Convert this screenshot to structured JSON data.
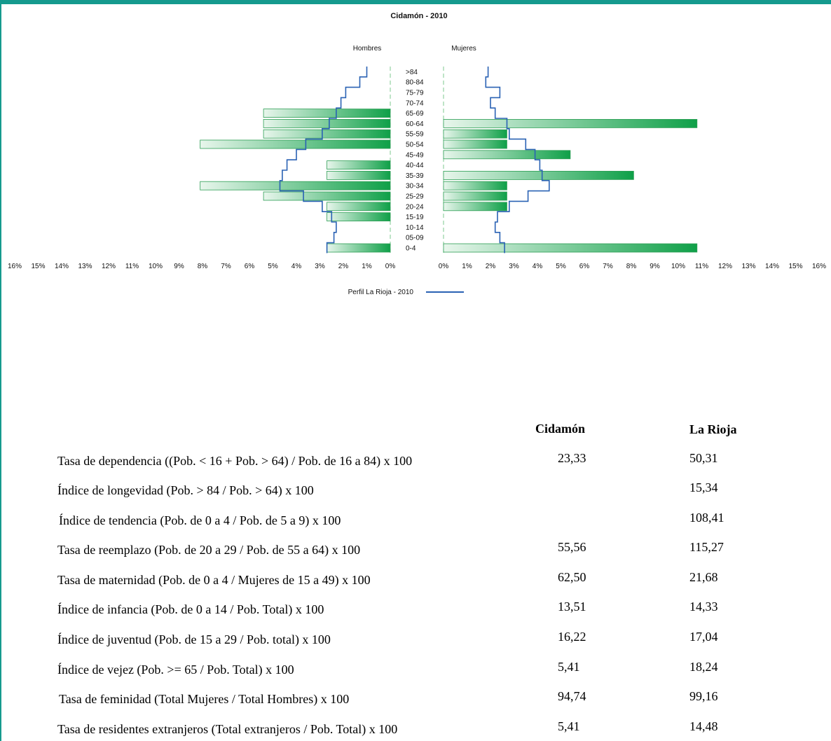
{
  "chart_data": {
    "type": "bar",
    "title": "Cidamón - 2010",
    "left_label": "Hombres",
    "right_label": "Mujeres",
    "categories": [
      ">84",
      "80-84",
      "75-79",
      "70-74",
      "65-69",
      "60-64",
      "55-59",
      "50-54",
      "45-49",
      "40-44",
      "35-39",
      "30-34",
      "25-29",
      "20-24",
      "15-19",
      "10-14",
      "05-09",
      "0-4"
    ],
    "series": [
      {
        "name": "Hombres",
        "values": [
          0,
          0,
          0,
          0,
          5.4,
          5.4,
          5.4,
          8.1,
          0,
          2.7,
          2.7,
          8.1,
          5.4,
          2.7,
          2.7,
          0,
          0,
          2.7
        ]
      },
      {
        "name": "Mujeres",
        "values": [
          0,
          0,
          0,
          0,
          0,
          10.8,
          2.7,
          2.7,
          5.4,
          0,
          8.1,
          2.7,
          2.7,
          2.7,
          0,
          0,
          0,
          10.8
        ]
      }
    ],
    "profile": {
      "name": "Perfil La Rioja - 2010",
      "hombres": [
        1.0,
        1.3,
        1.9,
        2.1,
        2.3,
        2.6,
        2.9,
        3.6,
        4.0,
        4.4,
        4.6,
        4.7,
        3.7,
        2.9,
        2.5,
        2.3,
        2.4,
        2.7
      ],
      "mujeres": [
        1.9,
        1.8,
        2.4,
        2.0,
        2.2,
        2.7,
        2.8,
        3.5,
        3.9,
        4.1,
        4.2,
        4.5,
        3.6,
        2.8,
        2.3,
        2.2,
        2.4,
        2.6
      ]
    },
    "xlim": [
      0,
      16
    ],
    "xtick_labels": [
      "0%",
      "1%",
      "2%",
      "3%",
      "4%",
      "5%",
      "6%",
      "7%",
      "8%",
      "9%",
      "10%",
      "11%",
      "12%",
      "13%",
      "14%",
      "15%",
      "16%"
    ],
    "colors": {
      "bar_light": "#e8f6ec",
      "bar_dark": "#0fa048",
      "bar_stroke": "#2e9e55",
      "profile": "#2a62b4",
      "frame": "#159a8e"
    }
  },
  "stats": {
    "headers": [
      "Cidamón",
      "La Rioja"
    ],
    "rows": [
      {
        "label": "Tasa de dependencia  ((Pob. < 16 + Pob. > 64) / Pob. de 16 a 84) x 100",
        "cidamon": "23,33",
        "rioja": "50,31"
      },
      {
        "label": "Índice de longevidad (Pob. > 84 / Pob. > 64) x 100",
        "cidamon": "",
        "rioja": "15,34"
      },
      {
        "label": "Índice de tendencia (Pob. de 0 a 4 / Pob. de 5 a 9) x 100",
        "cidamon": "",
        "rioja": "108,41"
      },
      {
        "label": "Tasa de reemplazo (Pob. de 20 a 29 / Pob. de 55 a 64) x 100",
        "cidamon": "55,56",
        "rioja": "115,27"
      },
      {
        "label": "Tasa de maternidad (Pob. de 0 a 4 / Mujeres de 15 a 49) x 100",
        "cidamon": "62,50",
        "rioja": "21,68"
      },
      {
        "label": "Índice de infancia (Pob. de 0 a 14 / Pob. Total) x 100",
        "cidamon": "13,51",
        "rioja": "14,33"
      },
      {
        "label": "Índice de juventud (Pob. de 15 a 29 / Pob. total) x 100",
        "cidamon": "16,22",
        "rioja": "17,04"
      },
      {
        "label": "Índice de vejez (Pob. >= 65 / Pob. Total) x 100",
        "cidamon": "5,41",
        "rioja": "18,24"
      },
      {
        "label": "Tasa de feminidad (Total Mujeres / Total Hombres) x 100",
        "cidamon": "94,74",
        "rioja": "99,16"
      },
      {
        "label": "Tasa de residentes extranjeros (Total extranjeros / Pob. Total) x 100",
        "cidamon": "5,41",
        "rioja": "14,48"
      }
    ]
  }
}
